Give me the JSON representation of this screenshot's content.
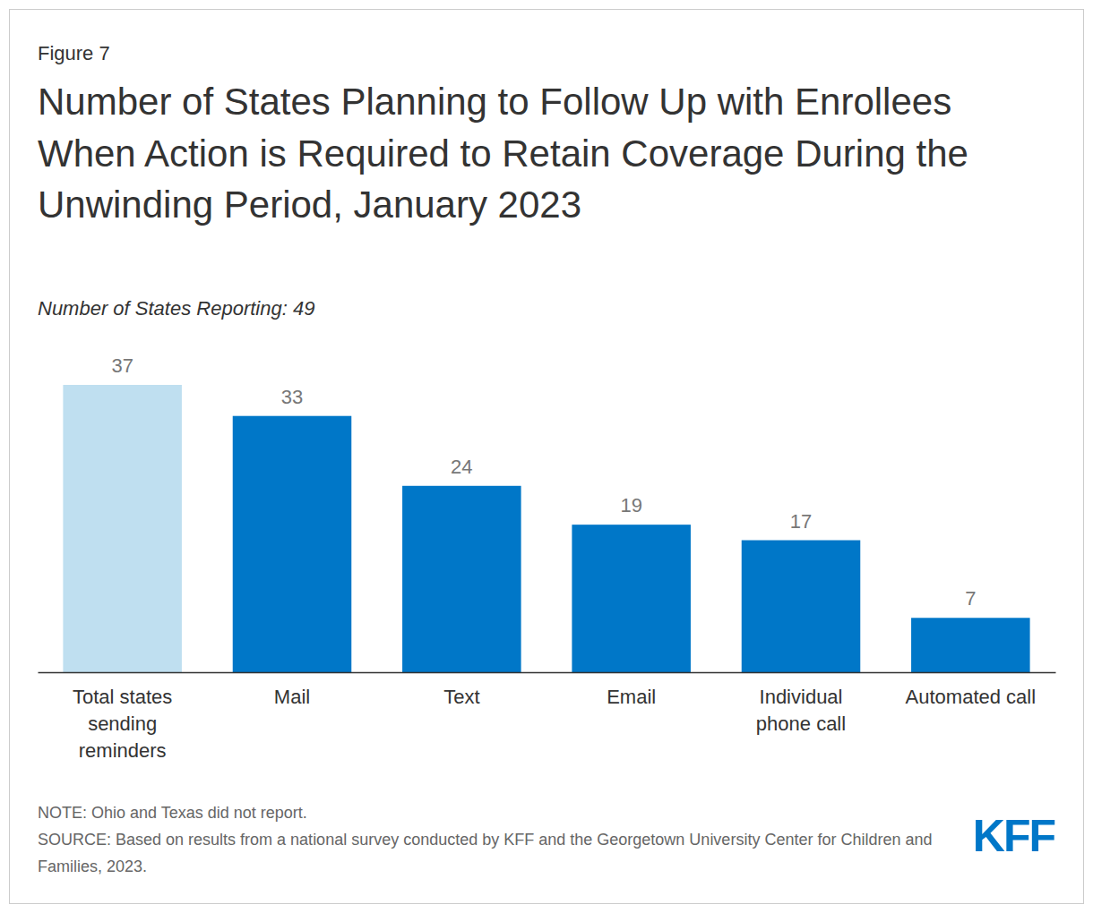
{
  "chart_data": {
    "type": "bar",
    "figure_label": "Figure 7",
    "title": "Number of States Planning to Follow Up with Enrollees When Action is Required to Retain Coverage During the Unwinding Period, January 2023",
    "subtitle": "Number of States Reporting: 49",
    "categories": [
      "Total states sending reminders",
      "Mail",
      "Text",
      "Email",
      "Individual phone call",
      "Automated call"
    ],
    "values": [
      37,
      33,
      24,
      19,
      17,
      7
    ],
    "colors": [
      "#bfdff0",
      "#0077c8",
      "#0077c8",
      "#0077c8",
      "#0077c8",
      "#0077c8"
    ],
    "ylim": [
      0,
      37
    ],
    "data_labels": true,
    "tick_labels": "x",
    "notes": [
      "NOTE: Ohio and Texas did not report.",
      "SOURCE: Based on results from a national survey conducted by KFF and the Georgetown University Center for Children and Families, 2023."
    ],
    "logo": "KFF"
  }
}
